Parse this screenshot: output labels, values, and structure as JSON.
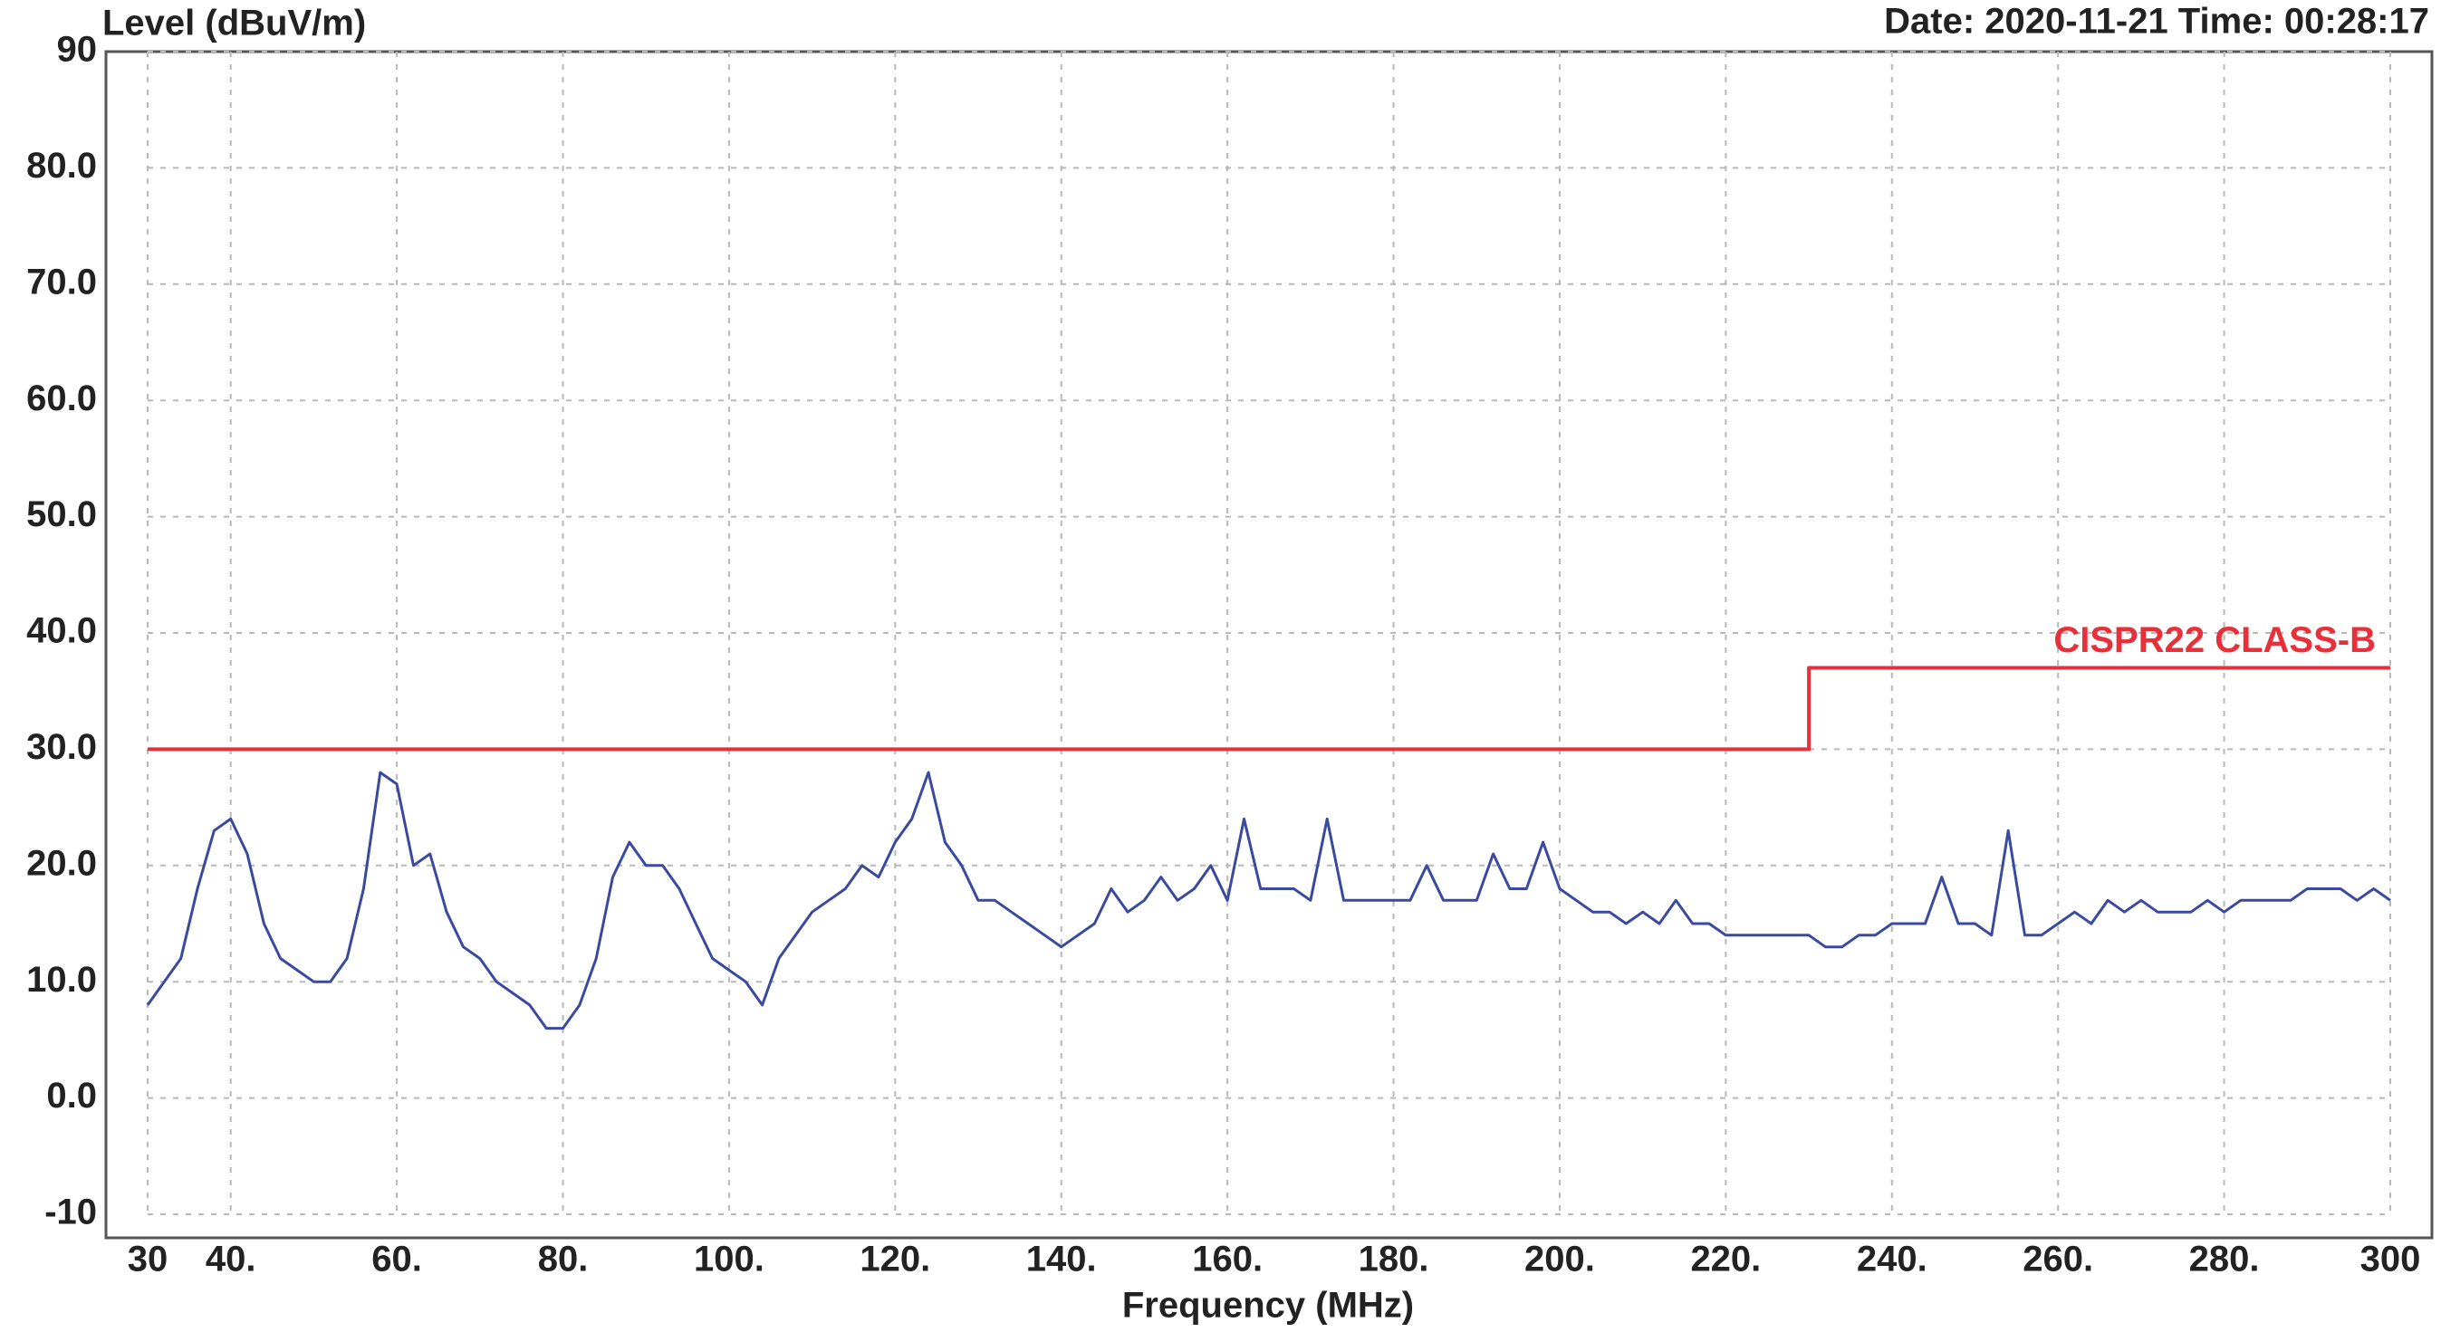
{
  "chart_data": {
    "type": "line",
    "y_label": "Level (dBuV/m)",
    "x_label": "Frequency (MHz)",
    "annotation": "Date: 2020-11-21  Time: 00:28:17",
    "xlim": [
      30,
      300
    ],
    "ylim": [
      -10,
      90
    ],
    "xticks": [
      30,
      {
        "value": 40,
        "label": "40."
      },
      {
        "value": 60,
        "label": "60."
      },
      {
        "value": 80,
        "label": "80."
      },
      {
        "value": 100,
        "label": "100."
      },
      {
        "value": 120,
        "label": "120."
      },
      {
        "value": 140,
        "label": "140."
      },
      {
        "value": 160,
        "label": "160."
      },
      {
        "value": 180,
        "label": "180."
      },
      {
        "value": 200,
        "label": "200."
      },
      {
        "value": 220,
        "label": "220."
      },
      {
        "value": 240,
        "label": "240."
      },
      {
        "value": 260,
        "label": "260."
      },
      {
        "value": 280,
        "label": "280."
      },
      300
    ],
    "yticks": [
      -10,
      {
        "value": 0,
        "label": "0.0"
      },
      {
        "value": 10,
        "label": "10.0"
      },
      {
        "value": 20,
        "label": "20.0"
      },
      {
        "value": 30,
        "label": "30.0"
      },
      {
        "value": 40,
        "label": "40.0"
      },
      {
        "value": 50,
        "label": "50.0"
      },
      {
        "value": 60,
        "label": "60.0"
      },
      {
        "value": 70,
        "label": "70.0"
      },
      {
        "value": 80,
        "label": "80.0"
      },
      90
    ],
    "grid": true,
    "series": [
      {
        "color": "#3a4aa0",
        "x": [
          30,
          32,
          34,
          36,
          38,
          40,
          42,
          44,
          46,
          48,
          50,
          52,
          54,
          56,
          58,
          60,
          62,
          64,
          66,
          68,
          70,
          72,
          74,
          76,
          78,
          80,
          82,
          84,
          86,
          88,
          90,
          92,
          94,
          96,
          98,
          100,
          102,
          104,
          106,
          108,
          110,
          112,
          114,
          116,
          118,
          120,
          122,
          124,
          126,
          128,
          130,
          132,
          134,
          136,
          138,
          140,
          142,
          144,
          146,
          148,
          150,
          152,
          154,
          156,
          158,
          160,
          162,
          164,
          166,
          168,
          170,
          172,
          174,
          176,
          178,
          180,
          182,
          184,
          186,
          188,
          190,
          192,
          194,
          196,
          198,
          200,
          202,
          204,
          206,
          208,
          210,
          212,
          214,
          216,
          218,
          220,
          222,
          224,
          226,
          228,
          230,
          232,
          234,
          236,
          238,
          240,
          242,
          244,
          246,
          248,
          250,
          252,
          254,
          256,
          258,
          260,
          262,
          264,
          266,
          268,
          270,
          272,
          274,
          276,
          278,
          280,
          282,
          284,
          286,
          288,
          290,
          292,
          294,
          296,
          298,
          300
        ],
        "values": [
          8,
          10,
          12,
          18,
          23,
          24,
          21,
          15,
          12,
          11,
          10,
          10,
          12,
          18,
          28,
          27,
          20,
          21,
          16,
          13,
          12,
          10,
          9,
          8,
          6,
          6,
          8,
          12,
          19,
          22,
          20,
          20,
          18,
          15,
          12,
          11,
          10,
          8,
          12,
          14,
          16,
          17,
          18,
          20,
          19,
          22,
          24,
          28,
          22,
          20,
          17,
          17,
          16,
          15,
          14,
          13,
          14,
          15,
          18,
          16,
          17,
          19,
          17,
          18,
          20,
          17,
          24,
          18,
          18,
          18,
          17,
          24,
          17,
          17,
          17,
          17,
          17,
          20,
          17,
          17,
          17,
          21,
          18,
          18,
          22,
          18,
          17,
          16,
          16,
          15,
          16,
          15,
          17,
          15,
          15,
          14,
          14,
          14,
          14,
          14,
          14,
          13,
          13,
          14,
          14,
          15,
          15,
          15,
          19,
          15,
          15,
          14,
          23,
          14,
          14,
          15,
          16,
          15,
          17,
          16,
          17,
          16,
          16,
          16,
          17,
          16,
          17,
          17,
          17,
          17,
          18,
          18,
          18,
          17,
          18,
          17
        ]
      },
      {
        "name": "CISPR22 CLASS-B",
        "color": "#e8303a",
        "x": [
          30,
          230,
          230,
          300
        ],
        "values": [
          30,
          30,
          37,
          37
        ]
      }
    ]
  }
}
